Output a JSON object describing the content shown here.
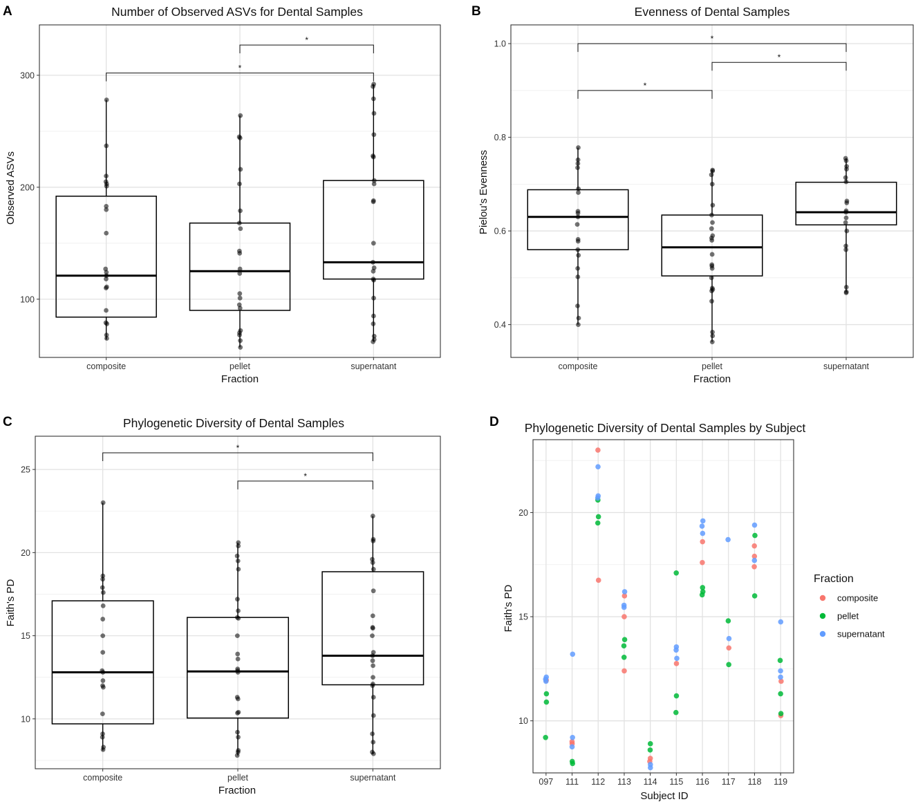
{
  "figure_letters": [
    "A",
    "B",
    "C",
    "D"
  ],
  "colors": {
    "composite": "#F8766D",
    "pellet": "#00BA38",
    "supernatant": "#619CFF",
    "point": "#000000"
  },
  "chart_data": [
    {
      "type": "box",
      "id": "A",
      "title": "Number of Observed ASVs for Dental Samples",
      "xlabel": "Fraction",
      "ylabel": "Observed ASVs",
      "categories": [
        "composite",
        "pellet",
        "supernatant"
      ],
      "ylim": [
        48,
        345
      ],
      "yticks": [
        100,
        200,
        300
      ],
      "yminor": [
        50,
        150,
        250
      ],
      "boxes": [
        {
          "category": "composite",
          "q1": 84,
          "median": 121,
          "q3": 192,
          "lower": 64,
          "upper": 278
        },
        {
          "category": "pellet",
          "q1": 90,
          "median": 125,
          "q3": 168,
          "lower": 57,
          "upper": 264
        },
        {
          "category": "supernatant",
          "q1": 118,
          "median": 133,
          "q3": 206,
          "lower": 62,
          "upper": 292
        }
      ],
      "points": {
        "composite": [
          278,
          237,
          210,
          205,
          203,
          201,
          183,
          180,
          159,
          127,
          124,
          121,
          118,
          111,
          110,
          90,
          79,
          78,
          68,
          65
        ],
        "pellet": [
          264,
          245,
          244,
          216,
          203,
          179,
          168,
          163,
          143,
          141,
          127,
          123,
          105,
          101,
          95,
          92,
          72,
          70,
          68,
          63,
          57
        ],
        "supernatant": [
          292,
          290,
          279,
          266,
          247,
          228,
          227,
          206,
          203,
          188,
          187,
          150,
          133,
          128,
          125,
          118,
          117,
          101,
          85,
          78,
          67,
          64,
          62
        ]
      },
      "brackets": [
        {
          "from": "pellet",
          "to": "supernatant",
          "y": 327,
          "label": "*"
        },
        {
          "from": "composite",
          "to": "supernatant",
          "y": 302,
          "label": "*"
        }
      ]
    },
    {
      "type": "box",
      "id": "B",
      "title": "Evenness of Dental Samples",
      "xlabel": "Fraction",
      "ylabel": "Pielou's Evenness",
      "categories": [
        "composite",
        "pellet",
        "supernatant"
      ],
      "ylim": [
        0.33,
        1.04
      ],
      "yticks": [
        0.4,
        0.6,
        0.8,
        1.0
      ],
      "yticklabels": [
        "0.4",
        "0.6",
        "0.8",
        "1.0"
      ],
      "yminor": [
        0.5,
        0.7,
        0.9
      ],
      "boxes": [
        {
          "category": "composite",
          "q1": 0.56,
          "median": 0.63,
          "q3": 0.688,
          "lower": 0.4,
          "upper": 0.778
        },
        {
          "category": "pellet",
          "q1": 0.504,
          "median": 0.565,
          "q3": 0.634,
          "lower": 0.363,
          "upper": 0.73
        },
        {
          "category": "supernatant",
          "q1": 0.613,
          "median": 0.64,
          "q3": 0.704,
          "lower": 0.47,
          "upper": 0.755
        }
      ],
      "points": {
        "composite": [
          0.778,
          0.752,
          0.744,
          0.735,
          0.69,
          0.682,
          0.642,
          0.638,
          0.63,
          0.614,
          0.582,
          0.578,
          0.56,
          0.548,
          0.52,
          0.502,
          0.44,
          0.414,
          0.4
        ],
        "pellet": [
          0.73,
          0.728,
          0.72,
          0.7,
          0.655,
          0.634,
          0.618,
          0.605,
          0.59,
          0.585,
          0.58,
          0.55,
          0.528,
          0.525,
          0.52,
          0.5,
          0.478,
          0.475,
          0.472,
          0.45,
          0.384,
          0.376,
          0.363
        ],
        "supernatant": [
          0.755,
          0.75,
          0.738,
          0.732,
          0.714,
          0.705,
          0.664,
          0.66,
          0.643,
          0.64,
          0.628,
          0.618,
          0.6,
          0.568,
          0.56,
          0.48,
          0.47,
          0.468
        ]
      },
      "brackets": [
        {
          "from": "composite",
          "to": "supernatant",
          "y": 1.0,
          "label": "*"
        },
        {
          "from": "pellet",
          "to": "supernatant",
          "y": 0.96,
          "label": "*"
        },
        {
          "from": "composite",
          "to": "pellet",
          "y": 0.9,
          "label": "*"
        }
      ]
    },
    {
      "type": "box",
      "id": "C",
      "title": "Phylogenetic Diversity of Dental Samples",
      "xlabel": "Fraction",
      "ylabel": "Faith's PD",
      "categories": [
        "composite",
        "pellet",
        "supernatant"
      ],
      "ylim": [
        7.0,
        27.0
      ],
      "yticks": [
        10,
        15,
        20,
        25
      ],
      "yminor": [
        7.5,
        12.5,
        17.5,
        22.5
      ],
      "boxes": [
        {
          "category": "composite",
          "q1": 9.7,
          "median": 12.8,
          "q3": 17.1,
          "lower": 8.1,
          "upper": 23.0
        },
        {
          "category": "pellet",
          "q1": 10.05,
          "median": 12.85,
          "q3": 16.1,
          "lower": 7.8,
          "upper": 20.6
        },
        {
          "category": "supernatant",
          "q1": 12.05,
          "median": 13.8,
          "q3": 18.85,
          "lower": 7.9,
          "upper": 22.2
        }
      ],
      "points": {
        "composite": [
          23.0,
          18.6,
          18.4,
          17.9,
          17.6,
          16.8,
          16.0,
          15.0,
          14.0,
          12.9,
          12.8,
          12.3,
          12.0,
          11.9,
          10.3,
          9.1,
          8.9,
          8.3,
          8.15
        ],
        "pellet": [
          20.6,
          20.4,
          19.8,
          19.5,
          19.0,
          17.2,
          16.5,
          16.1,
          16.05,
          15.0,
          13.9,
          13.6,
          13.0,
          12.9,
          12.8,
          11.3,
          11.2,
          10.4,
          10.35,
          9.2,
          8.9,
          8.1,
          8.0,
          7.8
        ],
        "supernatant": [
          22.2,
          20.8,
          20.7,
          19.6,
          19.4,
          19.0,
          17.7,
          16.2,
          15.5,
          15.45,
          15.0,
          14.0,
          13.8,
          13.5,
          13.2,
          12.5,
          12.1,
          12.0,
          11.3,
          10.2,
          9.1,
          8.6,
          8.0,
          7.9
        ]
      },
      "brackets": [
        {
          "from": "composite",
          "to": "supernatant",
          "y": 26.0,
          "label": "*"
        },
        {
          "from": "pellet",
          "to": "supernatant",
          "y": 24.3,
          "label": "*"
        }
      ]
    },
    {
      "type": "scatter",
      "id": "D",
      "title": "Phylogenetic Diversity of Dental Samples by Subject",
      "xlabel": "Subject ID",
      "ylabel": "Faith's PD",
      "categories": [
        "097",
        "111",
        "112",
        "113",
        "114",
        "115",
        "116",
        "117",
        "118",
        "119"
      ],
      "ylim": [
        7.5,
        23.5
      ],
      "yticks": [
        10,
        15,
        20
      ],
      "yminor": [
        7.5,
        12.5,
        17.5,
        22.5
      ],
      "legend": {
        "title": "Fraction",
        "entries": [
          "composite",
          "pellet",
          "supernatant"
        ],
        "position": "right"
      },
      "series": [
        {
          "name": "composite",
          "points": [
            [
              "097",
              11.95
            ],
            [
              "111",
              8.9
            ],
            [
              "111",
              9.0
            ],
            [
              "112",
              23.0
            ],
            [
              "112",
              16.75
            ],
            [
              "113",
              16.0
            ],
            [
              "113",
              15.0
            ],
            [
              "113",
              12.4
            ],
            [
              "114",
              8.2
            ],
            [
              "114",
              8.05
            ],
            [
              "115",
              12.75
            ],
            [
              "116",
              18.6
            ],
            [
              "116",
              17.6
            ],
            [
              "117",
              13.5
            ],
            [
              "118",
              18.4
            ],
            [
              "118",
              17.9
            ],
            [
              "118",
              17.4
            ],
            [
              "119",
              11.9
            ],
            [
              "119",
              10.25
            ]
          ]
        },
        {
          "name": "pellet",
          "points": [
            [
              "097",
              11.3
            ],
            [
              "097",
              10.9
            ],
            [
              "097",
              9.2
            ],
            [
              "111",
              8.05
            ],
            [
              "111",
              7.95
            ],
            [
              "112",
              20.6
            ],
            [
              "112",
              19.8
            ],
            [
              "112",
              19.5
            ],
            [
              "113",
              13.9
            ],
            [
              "113",
              13.6
            ],
            [
              "113",
              13.05
            ],
            [
              "114",
              8.9
            ],
            [
              "114",
              8.6
            ],
            [
              "115",
              17.1
            ],
            [
              "115",
              11.2
            ],
            [
              "115",
              10.4
            ],
            [
              "116",
              16.4
            ],
            [
              "116",
              16.2
            ],
            [
              "116",
              16.05
            ],
            [
              "117",
              14.8
            ],
            [
              "117",
              12.7
            ],
            [
              "118",
              18.9
            ],
            [
              "118",
              16.0
            ],
            [
              "119",
              12.9
            ],
            [
              "119",
              11.3
            ],
            [
              "119",
              10.35
            ]
          ]
        },
        {
          "name": "supernatant",
          "points": [
            [
              "097",
              12.1
            ],
            [
              "097",
              12.0
            ],
            [
              "097",
              11.9
            ],
            [
              "111",
              13.2
            ],
            [
              "111",
              9.2
            ],
            [
              "111",
              8.75
            ],
            [
              "112",
              22.2
            ],
            [
              "112",
              20.8
            ],
            [
              "112",
              20.7
            ],
            [
              "113",
              16.2
            ],
            [
              "113",
              15.55
            ],
            [
              "113",
              15.45
            ],
            [
              "114",
              7.9
            ],
            [
              "114",
              7.75
            ],
            [
              "115",
              13.55
            ],
            [
              "115",
              13.4
            ],
            [
              "115",
              13.0
            ],
            [
              "116",
              19.6
            ],
            [
              "116",
              19.35
            ],
            [
              "116",
              19.0
            ],
            [
              "117",
              18.7
            ],
            [
              "117",
              13.95
            ],
            [
              "118",
              19.4
            ],
            [
              "118",
              17.7
            ],
            [
              "119",
              14.75
            ],
            [
              "119",
              12.4
            ],
            [
              "119",
              12.1
            ]
          ]
        }
      ]
    }
  ]
}
